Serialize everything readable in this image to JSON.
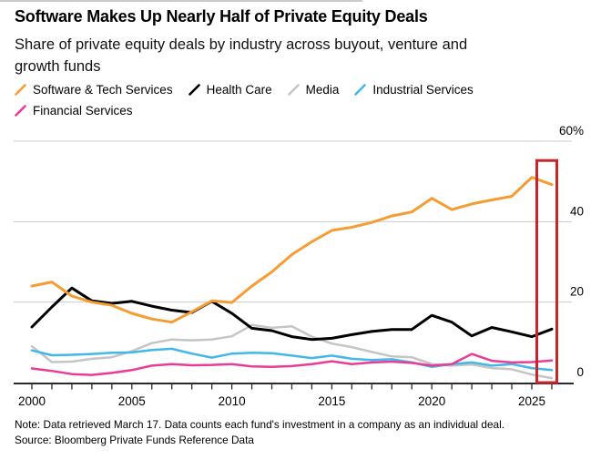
{
  "header": {
    "title": "Software Makes Up Nearly Half of Private Equity Deals",
    "subtitle_line1": "Share of private equity deals by industry across buyout, venture and",
    "subtitle_line2": "growth funds"
  },
  "footer": {
    "note": "Note: Data retrieved March 17. Data counts each fund's investment in a company as an individual deal.",
    "source": "Source: Bloomberg Private Funds Reference Data"
  },
  "chart_data": {
    "type": "line",
    "x": [
      2000,
      2001,
      2002,
      2003,
      2004,
      2005,
      2006,
      2007,
      2008,
      2009,
      2010,
      2011,
      2012,
      2013,
      2014,
      2015,
      2016,
      2017,
      2018,
      2019,
      2020,
      2021,
      2022,
      2023,
      2024,
      2025,
      2026
    ],
    "series": [
      {
        "name": "Software & Tech Services",
        "color": "#F59D33",
        "values": [
          24,
          25,
          21.5,
          20,
          19.2,
          17.2,
          15.8,
          15,
          17.6,
          20.3,
          19.9,
          24,
          27.5,
          31.8,
          35,
          37.8,
          38.6,
          39.8,
          41.4,
          42.4,
          45.8,
          43,
          44.4,
          45.4,
          46.3,
          51,
          49.2
        ]
      },
      {
        "name": "Health Care",
        "color": "#000000",
        "values": [
          13.8,
          18.8,
          23.5,
          20.3,
          19.7,
          20.2,
          19,
          18,
          17.4,
          20.2,
          17.2,
          13.5,
          12.9,
          11.4,
          10.7,
          11,
          11.9,
          12.7,
          13.2,
          13.2,
          16.7,
          15,
          11.6,
          13.7,
          12.6,
          11.4,
          13.3
        ]
      },
      {
        "name": "Media",
        "color": "#C5C5C5",
        "values": [
          9,
          5.1,
          5.2,
          5.9,
          6.3,
          7.8,
          9.8,
          10.7,
          10.5,
          10.7,
          11.5,
          14.3,
          13.6,
          14,
          11.4,
          9.7,
          8.8,
          7.6,
          6.5,
          6.3,
          4.6,
          4.2,
          4.5,
          3.6,
          3.3,
          2,
          1.1
        ]
      },
      {
        "name": "Industrial Services",
        "color": "#42B7E9",
        "values": [
          8,
          6.8,
          6.9,
          7.1,
          7.4,
          7.5,
          8.1,
          8.4,
          7.2,
          6.2,
          7.2,
          7.4,
          7.3,
          6.7,
          6.1,
          6.7,
          5.9,
          5.6,
          5.8,
          5,
          3.9,
          4.6,
          5,
          4.2,
          4.6,
          3.6,
          3.1
        ]
      },
      {
        "name": "Financial Services",
        "color": "#E83C96",
        "values": [
          3.5,
          2.9,
          2.1,
          1.9,
          2.4,
          3.1,
          4.2,
          4.6,
          4.3,
          4.4,
          4.6,
          4,
          3.9,
          4.1,
          4.6,
          5.3,
          4.6,
          5,
          5.2,
          4.9,
          4.2,
          4.6,
          7.1,
          5.4,
          5,
          5.1,
          5.5
        ]
      }
    ],
    "ylim": [
      0,
      60
    ],
    "yticks": [
      {
        "value": 0,
        "label": "0"
      },
      {
        "value": 20,
        "label": "20"
      },
      {
        "value": 40,
        "label": "40"
      },
      {
        "value": 60,
        "label": "60%"
      }
    ],
    "xtick_years": [
      2000,
      2005,
      2010,
      2015,
      2020,
      2025
    ],
    "grid": "horizontal",
    "legend_position": "top",
    "style": {
      "grid_color": "#CCCCCC",
      "axis_color": "#2B2B2B",
      "highlight_color": "#C5262C"
    },
    "highlight_box": {
      "x_from": 2025.25,
      "x_to": 2026.25,
      "value_from": 0,
      "value_to": 55.2,
      "color": "#C5262C"
    }
  }
}
